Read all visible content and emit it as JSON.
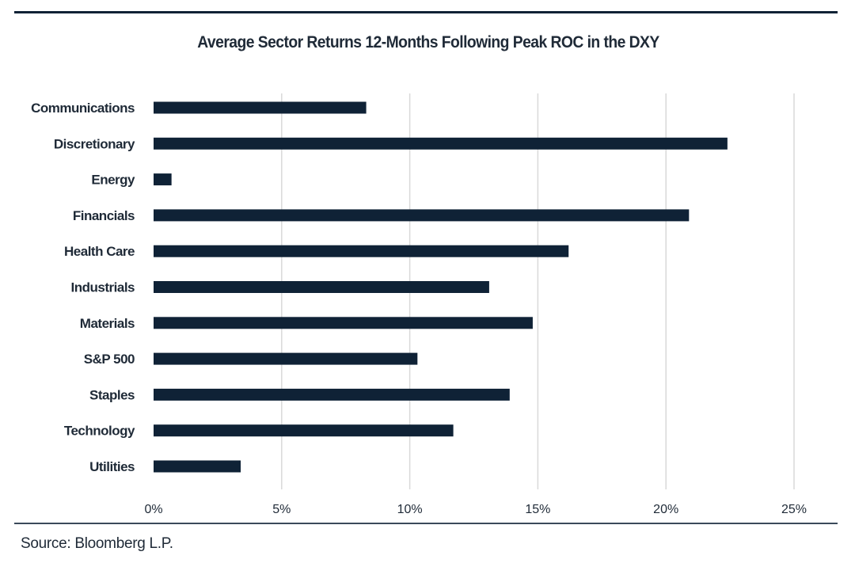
{
  "chart_data": {
    "type": "bar",
    "orientation": "horizontal",
    "title": "Average Sector Returns 12-Months Following Peak ROC in the DXY",
    "categories": [
      "Communications",
      "Discretionary",
      "Energy",
      "Financials",
      "Health Care",
      "Industrials",
      "Materials",
      "S&P 500",
      "Staples",
      "Technology",
      "Utilities"
    ],
    "values": [
      8.3,
      22.4,
      0.7,
      20.9,
      16.2,
      13.1,
      14.8,
      10.3,
      13.9,
      11.7,
      3.4
    ],
    "value_unit": "%",
    "xlim": [
      0,
      25
    ],
    "x_ticks": [
      0,
      5,
      10,
      15,
      20,
      25
    ],
    "x_tick_labels": [
      "0%",
      "5%",
      "10%",
      "15%",
      "20%",
      "25%"
    ],
    "xlabel": "",
    "ylabel": "",
    "grid": "vertical",
    "legend": "none",
    "bar_color": "#0f2236",
    "grid_color": "#d9d9d9"
  },
  "source_note": "Source:  Bloomberg L.P."
}
